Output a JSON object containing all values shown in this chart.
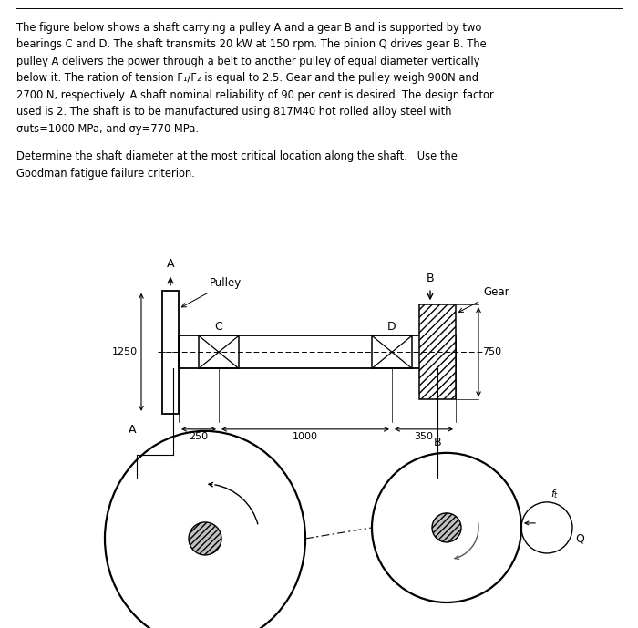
{
  "text_line1": "The figure below shows a shaft carrying a pulley A and a gear B and is supported by two",
  "text_line2": "bearings C and D. The shaft transmits 20 kW at 150 rpm. The pinion Q drives gear B. The",
  "text_line3": "pulley A delivers the power through a belt to another pulley of equal diameter vertically",
  "text_line4": "below it. The ration of tension F₁/F₂ is equal to 2.5. Gear and the pulley weigh 900N and",
  "text_line5": "2700 N, respectively. A shaft nominal reliability of 90 per cent is desired. The design factor",
  "text_line6": "used is 2. The shaft is to be manufactured using 817M40 hot rolled alloy steel with",
  "text_line7": "σuts=1000 MPa, and σy=770 MPa.",
  "text_line8": "Determine the shaft diameter at the most critical location along the shaft.   Use the",
  "text_line9": "Goodman fatigue failure criterion.",
  "bg": "#ffffff"
}
